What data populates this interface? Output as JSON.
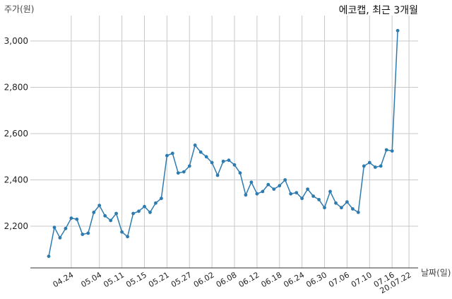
{
  "chart_data": {
    "type": "line",
    "title": "에코캡, 최근 3개월",
    "ylabel": "주가(원)",
    "xlabel": "날짜(일)",
    "ylim": [
      2020,
      3110
    ],
    "yticks": [
      2200,
      2400,
      2600,
      2800,
      3000
    ],
    "ytick_labels": [
      "2,200",
      "2,400",
      "2,600",
      "2,800",
      "3,000"
    ],
    "grid": true,
    "x_tick_labels": [
      "04.24",
      "05.04",
      "05.11",
      "05.15",
      "05.21",
      "05.27",
      "06.02",
      "06.08",
      "06.12",
      "06.18",
      "06.24",
      "06.30",
      "07.06",
      "07.10",
      "07.16",
      "20.07.22"
    ],
    "x_tick_index": [
      4,
      9,
      13,
      17,
      21,
      25,
      29,
      33,
      37,
      41,
      45,
      49,
      53,
      57,
      61,
      64
    ],
    "series": [
      {
        "values": [
          2070,
          2195,
          2150,
          2190,
          2235,
          2230,
          2165,
          2170,
          2260,
          2290,
          2245,
          2225,
          2255,
          2175,
          2155,
          2255,
          2265,
          2285,
          2260,
          2300,
          2320,
          2505,
          2515,
          2430,
          2435,
          2460,
          2550,
          2520,
          2500,
          2475,
          2420,
          2480,
          2485,
          2465,
          2430,
          2335,
          2390,
          2340,
          2350,
          2380,
          2360,
          2375,
          2400,
          2340,
          2345,
          2320,
          2360,
          2330,
          2315,
          2280,
          2350,
          2300,
          2280,
          2305,
          2275,
          2260,
          2460,
          2475,
          2455,
          2460,
          2530,
          2525,
          3045
        ]
      }
    ]
  }
}
